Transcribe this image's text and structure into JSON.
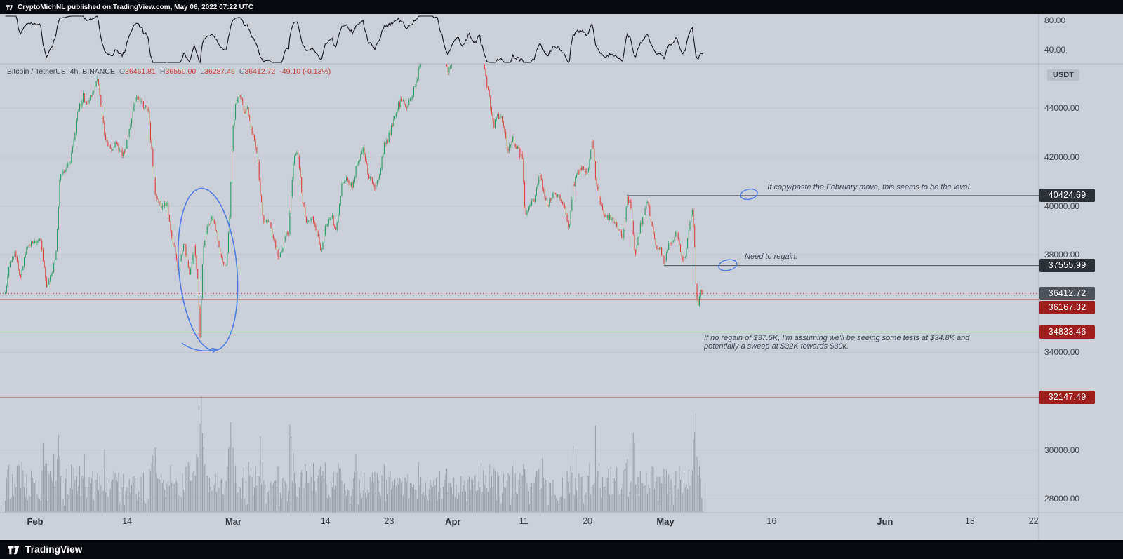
{
  "header": {
    "attribution": "CryptoMichNL published on TradingView.com, May 06, 2022 07:22 UTC"
  },
  "footer": {
    "brand": "TradingView"
  },
  "legend": {
    "symbol_text": "Bitcoin / TetherUS, 4h, BINANCE",
    "o_label": "O",
    "o": "36461.81",
    "h_label": "H",
    "h": "36550.00",
    "l_label": "L",
    "l": "36287.46",
    "c_label": "C",
    "c": "36412.72",
    "change": "-49.10 (-0.13%)"
  },
  "price_axis": {
    "currency": "USDT"
  },
  "chart_data": {
    "type": "candlestick",
    "title": "Bitcoin / TetherUS, 4h, BINANCE",
    "interval": "4h",
    "exchange": "BINANCE",
    "last_candle": {
      "open": 36461.81,
      "high": 36550.0,
      "low": 36287.46,
      "close": 36412.72,
      "change": -49.1,
      "change_pct": -0.13
    },
    "colors": {
      "up": "#2a9c62",
      "down": "#d8463d",
      "volume": "#949aa5",
      "drawing": "#4d7ce2",
      "level_red": "#ae4a45",
      "level_dark": "#4a4e58",
      "current_line": "#cf4a41",
      "indicator_line": "#14161c"
    },
    "y_axis": {
      "range_top": 45820,
      "range_bottom": 27435,
      "ticks": [
        {
          "value": 44000,
          "label": "44000.00"
        },
        {
          "value": 42000,
          "label": "42000.00"
        },
        {
          "value": 40000,
          "label": "40000.00"
        },
        {
          "value": 38000,
          "label": "38000.00"
        },
        {
          "value": 34000,
          "label": "34000.00"
        },
        {
          "value": 30000,
          "label": "30000.00"
        },
        {
          "value": 28000,
          "label": "28000.00"
        }
      ],
      "badges": [
        {
          "price": 40424.69,
          "label": "40424.69",
          "type": "level-black"
        },
        {
          "price": 37555.99,
          "label": "37555.99",
          "type": "level-black"
        },
        {
          "price": 36412.72,
          "label": "36412.72",
          "type": "current"
        },
        {
          "price": 36167.32,
          "label": "36167.32",
          "type": "level-red"
        },
        {
          "price": 34833.46,
          "label": "34833.46",
          "type": "level-red"
        },
        {
          "price": 32147.49,
          "label": "32147.49",
          "type": "level-red"
        }
      ]
    },
    "x_axis": {
      "ticks": [
        {
          "label": "Feb",
          "d": 0,
          "major": true
        },
        {
          "label": "14",
          "d": 13
        },
        {
          "label": "Mar",
          "d": 28,
          "major": true
        },
        {
          "label": "14",
          "d": 41
        },
        {
          "label": "23",
          "d": 50
        },
        {
          "label": "Apr",
          "d": 59,
          "major": true
        },
        {
          "label": "11",
          "d": 69
        },
        {
          "label": "20",
          "d": 78
        },
        {
          "label": "May",
          "d": 89,
          "major": true
        },
        {
          "label": "16",
          "d": 104
        },
        {
          "label": "Jun",
          "d": 120,
          "major": true
        },
        {
          "label": "13",
          "d": 132
        },
        {
          "label": "22",
          "d": 141
        }
      ]
    },
    "indicator_pane": {
      "type": "line",
      "description": "black oscillator line above price pane",
      "ticks": [
        {
          "value": 80,
          "label": "80.00"
        },
        {
          "value": 40,
          "label": "40.00"
        }
      ]
    },
    "levels": [
      {
        "price": 40424.69,
        "style": "ray-dark",
        "start_day": 83.6
      },
      {
        "price": 37555.99,
        "style": "ray-dark",
        "start_day": 88.8
      },
      {
        "price": 36412.72,
        "style": "current-dotted"
      },
      {
        "price": 36167.32,
        "style": "line-red"
      },
      {
        "price": 34833.46,
        "style": "line-red"
      },
      {
        "price": 32147.49,
        "style": "line-red"
      }
    ],
    "annotations": [
      {
        "d": 103.4,
        "price": 40700,
        "lines": [
          "If copy/paste the February move, this seems to be the level."
        ]
      },
      {
        "d": 100.2,
        "price": 37860,
        "lines": [
          "Need to regain."
        ]
      },
      {
        "d": 94.45,
        "price": 34530,
        "lines": [
          "If no regain of $37.5K, I'm assuming we'll be seeing some tests at $34.8K and",
          "potentially a sweep at $32K towards $30k."
        ]
      }
    ],
    "drawings": {
      "big_ellipse": {
        "d": 24.4,
        "price": 37400,
        "rx_days": 4.1,
        "ry_price": 3330,
        "rotate": -5
      },
      "small_ellipses": [
        {
          "d": 100.8,
          "price": 40476,
          "rx_days": 1.2,
          "ry_price": 205
        },
        {
          "d": 97.8,
          "price": 37575,
          "rx_days": 1.3,
          "ry_price": 215
        }
      ],
      "arrow": {
        "points": [
          [
            20.7,
            34385
          ],
          [
            22.9,
            33926
          ],
          [
            25.6,
            34127
          ]
        ]
      }
    },
    "price_keypoints": [
      [
        -4.2,
        36400
      ],
      [
        -3.6,
        37650
      ],
      [
        -2.8,
        38100
      ],
      [
        -2.1,
        37050
      ],
      [
        -1.2,
        38300
      ],
      [
        0.0,
        38550
      ],
      [
        0.8,
        38650
      ],
      [
        1.6,
        36650
      ],
      [
        2.4,
        37250
      ],
      [
        3.0,
        38100
      ],
      [
        3.5,
        41200
      ],
      [
        4.2,
        41500
      ],
      [
        5.0,
        41800
      ],
      [
        6.0,
        43800
      ],
      [
        6.8,
        44450
      ],
      [
        7.4,
        44050
      ],
      [
        8.3,
        44850
      ],
      [
        8.8,
        45300
      ],
      [
        9.3,
        44000
      ],
      [
        10.0,
        42600
      ],
      [
        10.8,
        42250
      ],
      [
        11.5,
        42600
      ],
      [
        12.3,
        42050
      ],
      [
        13.0,
        42550
      ],
      [
        13.8,
        43950
      ],
      [
        14.5,
        44500
      ],
      [
        15.3,
        44150
      ],
      [
        16.0,
        43850
      ],
      [
        16.6,
        41800
      ],
      [
        17.0,
        40450
      ],
      [
        17.8,
        39950
      ],
      [
        18.6,
        40100
      ],
      [
        19.5,
        38400
      ],
      [
        20.3,
        37350
      ],
      [
        21.0,
        38600
      ],
      [
        21.8,
        37150
      ],
      [
        22.5,
        38300
      ],
      [
        23.0,
        36900
      ],
      [
        23.3,
        34650
      ],
      [
        23.7,
        38200
      ],
      [
        24.3,
        39100
      ],
      [
        25.0,
        39500
      ],
      [
        25.6,
        38950
      ],
      [
        26.3,
        37800
      ],
      [
        27.0,
        37550
      ],
      [
        27.5,
        39800
      ],
      [
        27.9,
        43100
      ],
      [
        28.4,
        44300
      ],
      [
        29.0,
        44600
      ],
      [
        29.5,
        43850
      ],
      [
        30.0,
        44050
      ],
      [
        30.6,
        43000
      ],
      [
        31.3,
        42300
      ],
      [
        31.8,
        40500
      ],
      [
        32.3,
        39300
      ],
      [
        33.0,
        39500
      ],
      [
        33.8,
        38500
      ],
      [
        34.4,
        37800
      ],
      [
        35.0,
        38400
      ],
      [
        35.8,
        39000
      ],
      [
        36.5,
        42000
      ],
      [
        37.0,
        42250
      ],
      [
        37.8,
        40200
      ],
      [
        38.3,
        39300
      ],
      [
        39.0,
        39600
      ],
      [
        39.8,
        38900
      ],
      [
        40.4,
        38050
      ],
      [
        41.0,
        39200
      ],
      [
        41.8,
        39650
      ],
      [
        42.5,
        38950
      ],
      [
        43.3,
        40800
      ],
      [
        44.0,
        41100
      ],
      [
        44.8,
        40850
      ],
      [
        45.5,
        41800
      ],
      [
        46.3,
        42250
      ],
      [
        47.0,
        41400
      ],
      [
        47.8,
        40700
      ],
      [
        48.5,
        41100
      ],
      [
        49.3,
        42400
      ],
      [
        50.0,
        42850
      ],
      [
        51.0,
        43900
      ],
      [
        51.8,
        44350
      ],
      [
        52.5,
        44050
      ],
      [
        53.3,
        44550
      ],
      [
        54.0,
        45300
      ],
      [
        54.8,
        46800
      ],
      [
        55.5,
        47300
      ],
      [
        56.3,
        47600
      ],
      [
        57.0,
        47300
      ],
      [
        57.8,
        46400
      ],
      [
        58.3,
        45450
      ],
      [
        59.0,
        46200
      ],
      [
        59.8,
        46550
      ],
      [
        60.5,
        45900
      ],
      [
        61.2,
        46800
      ],
      [
        62.0,
        46400
      ],
      [
        62.8,
        46700
      ],
      [
        63.5,
        45600
      ],
      [
        64.2,
        44200
      ],
      [
        64.7,
        43250
      ],
      [
        65.4,
        43800
      ],
      [
        66.1,
        43400
      ],
      [
        66.7,
        42300
      ],
      [
        67.4,
        42750
      ],
      [
        68.2,
        42300
      ],
      [
        68.8,
        41950
      ],
      [
        69.2,
        39600
      ],
      [
        69.8,
        39900
      ],
      [
        70.5,
        40250
      ],
      [
        71.2,
        41250
      ],
      [
        71.8,
        40600
      ],
      [
        72.3,
        39950
      ],
      [
        73.0,
        40400
      ],
      [
        74.0,
        40450
      ],
      [
        74.8,
        39850
      ],
      [
        75.4,
        39000
      ],
      [
        75.9,
        40700
      ],
      [
        76.6,
        41400
      ],
      [
        77.3,
        41600
      ],
      [
        78.0,
        41350
      ],
      [
        78.7,
        42700
      ],
      [
        79.2,
        41000
      ],
      [
        79.8,
        40050
      ],
      [
        80.5,
        39600
      ],
      [
        81.3,
        39500
      ],
      [
        82.2,
        39200
      ],
      [
        83.0,
        38650
      ],
      [
        83.6,
        40300
      ],
      [
        84.1,
        40050
      ],
      [
        84.7,
        38000
      ],
      [
        85.3,
        39000
      ],
      [
        86.0,
        39700
      ],
      [
        86.4,
        40250
      ],
      [
        87.0,
        39300
      ],
      [
        87.7,
        38350
      ],
      [
        88.3,
        38200
      ],
      [
        88.9,
        37650
      ],
      [
        89.3,
        38300
      ],
      [
        90.0,
        38500
      ],
      [
        90.6,
        38950
      ],
      [
        91.2,
        37950
      ],
      [
        91.8,
        37800
      ],
      [
        92.4,
        39300
      ],
      [
        92.8,
        39850
      ],
      [
        93.1,
        38600
      ],
      [
        93.35,
        36400
      ],
      [
        93.6,
        35900
      ],
      [
        93.9,
        36450
      ],
      [
        94.34,
        36412
      ]
    ]
  }
}
